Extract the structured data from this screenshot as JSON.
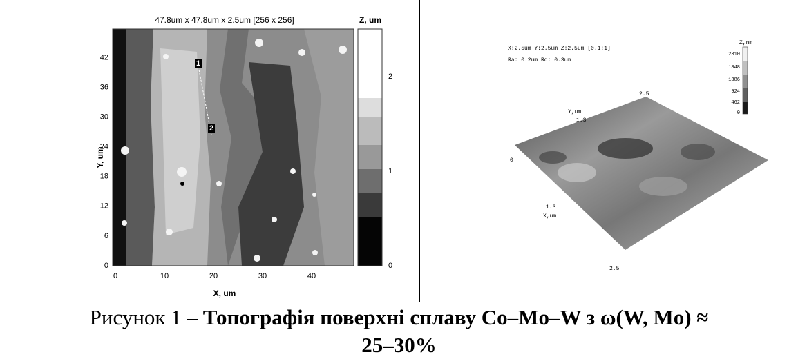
{
  "left_image": {
    "title": "47.8um x 47.8um x 2.5um [256 x 256]",
    "x_label": "X, um",
    "y_label": "Y, um",
    "x_ticks": [
      0,
      10,
      20,
      30,
      40
    ],
    "y_ticks": [
      0,
      6,
      12,
      18,
      24,
      30,
      36,
      42
    ],
    "colorbar_title": "Z, um",
    "colorbar_ticks": [
      0,
      1,
      2
    ],
    "markers": [
      "1",
      "2"
    ]
  },
  "right_image": {
    "info_line_1": "X:2.5um  Y:2.5um  Z:2.5um [0.1:1]",
    "info_line_2": "Ra: 0.2um  Rq: 0.3um",
    "colorbar_title": "Z,nm",
    "colorbar_ticks": [
      2310,
      1848,
      1386,
      924,
      462,
      0
    ],
    "y_axis_label": "Y,um",
    "x_axis_label": "X,um",
    "y_axis_ticks": [
      "2.5",
      "1.3",
      "0"
    ],
    "x_axis_ticks": [
      "1.3",
      "2.5"
    ]
  },
  "caption": {
    "prefix": "Рисунок 1 – ",
    "bold": "Топографія поверхні сплаву Co–Mo–W з ω(W, Mo) ≈ 25–30%"
  }
}
